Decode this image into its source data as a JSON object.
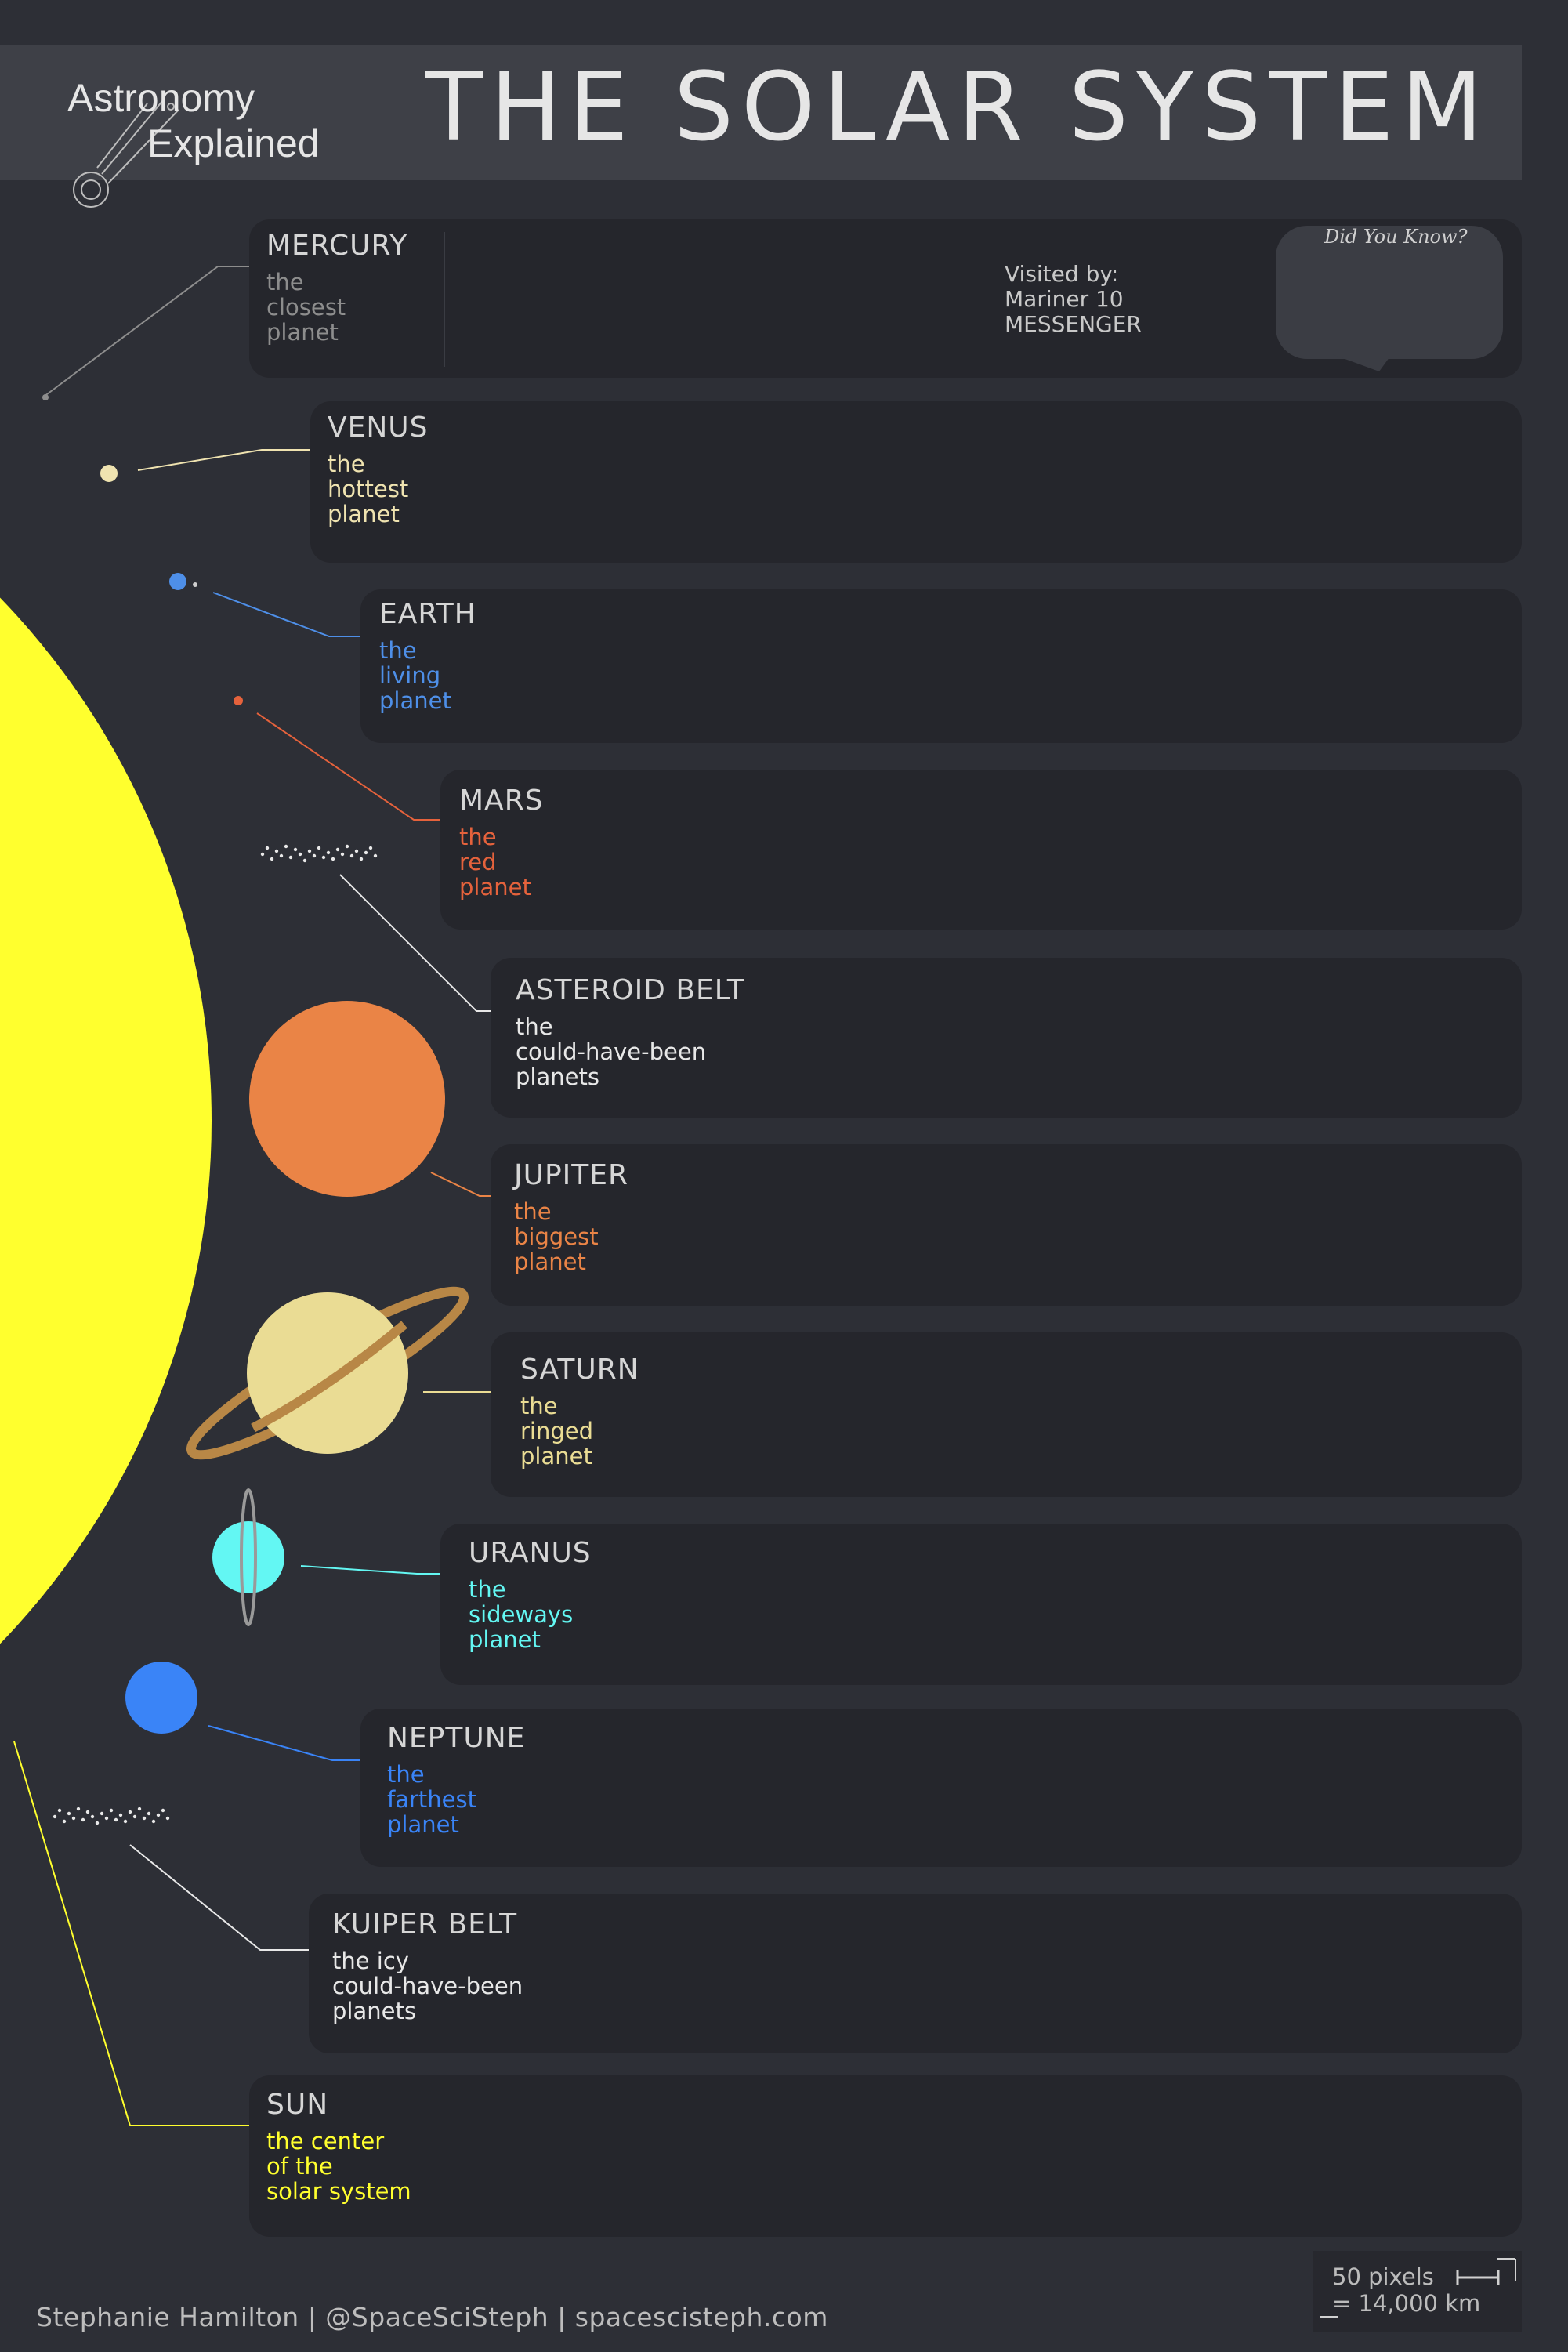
{
  "header": {
    "title": "THE SOLAR SYSTEM",
    "logo_line1": "Astronomy",
    "logo_line2": "Explained"
  },
  "bodies": [
    {
      "name": "MERCURY",
      "tag": "the\nclosest\nplanet",
      "color": "#8d8d8d"
    },
    {
      "name": "VENUS",
      "tag": "the\nhottest\nplanet",
      "color": "#efe3b0"
    },
    {
      "name": "EARTH",
      "tag": "the\nliving\nplanet",
      "color": "#4e8fe8"
    },
    {
      "name": "MARS",
      "tag": "the\nred\nplanet",
      "color": "#e5623c"
    },
    {
      "name": "ASTEROID BELT",
      "tag": "the\ncould-have-been\nplanets",
      "color": "#e8e8e8"
    },
    {
      "name": "JUPITER",
      "tag": "the\nbiggest\nplanet",
      "color": "#ea8446"
    },
    {
      "name": "SATURN",
      "tag": "the\nringed\nplanet",
      "color": "#eadc94"
    },
    {
      "name": "URANUS",
      "tag": "the\nsideways\nplanet",
      "color": "#63f7f3"
    },
    {
      "name": "NEPTUNE",
      "tag": "the\nfarthest\nplanet",
      "color": "#3a84f7"
    },
    {
      "name": "KUIPER BELT",
      "tag": "the icy\ncould-have-been\nplanets",
      "color": "#e8e8e8"
    },
    {
      "name": "SUN",
      "tag": "the center\nof the\nsolar system",
      "color": "#ffff2e"
    }
  ],
  "mercury_visited": "Visited by:\nMariner 10\nMESSENGER",
  "did_you_know": "Did You Know?",
  "scale": {
    "line1": "50 pixels",
    "line2": "= 14,000 km"
  },
  "footer": "Stephanie Hamilton  |  @SpaceSciSteph  |  spacescisteph.com"
}
